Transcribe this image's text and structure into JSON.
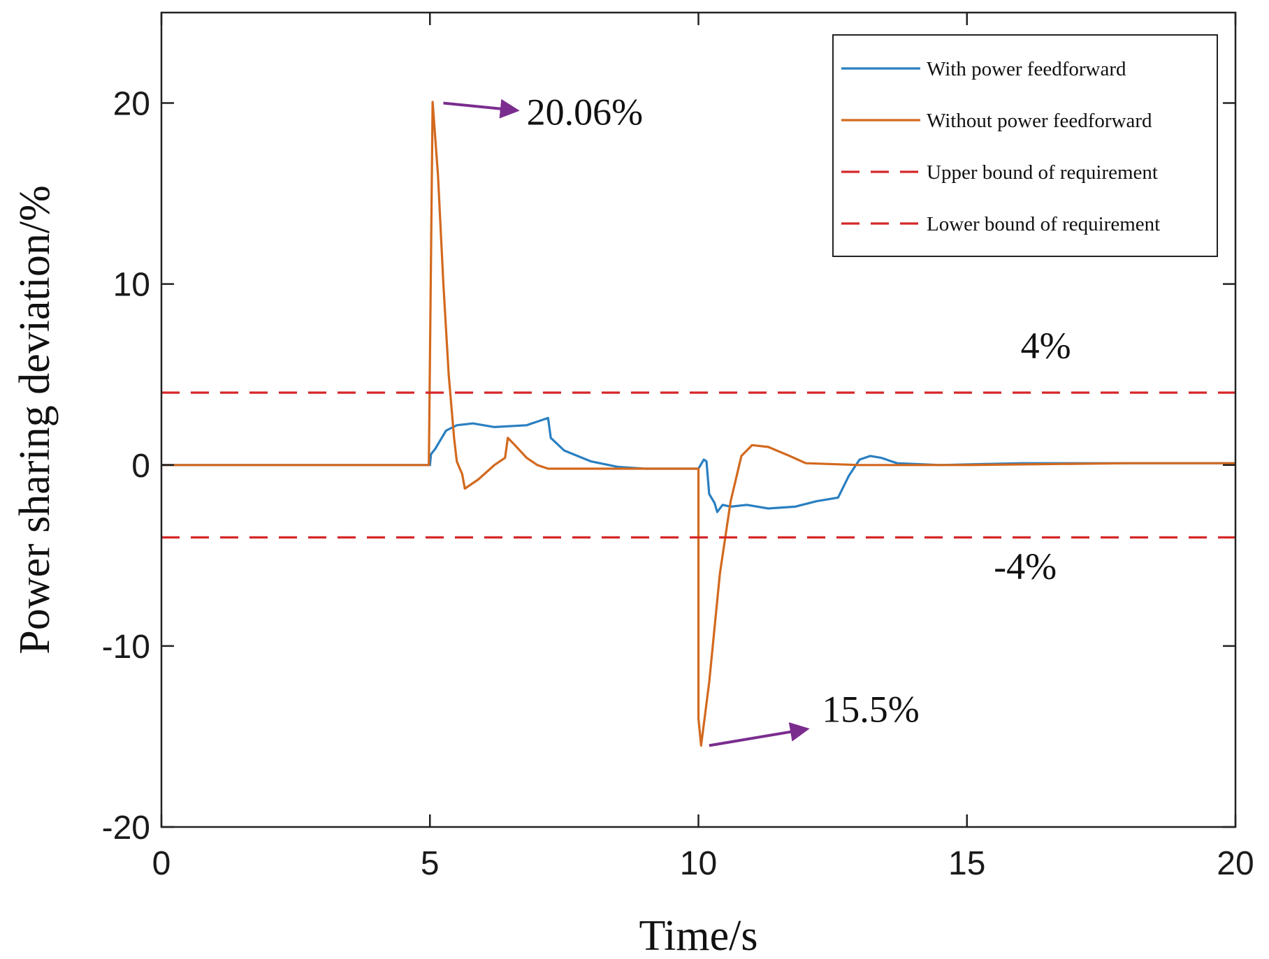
{
  "chart_data": {
    "type": "line",
    "xlabel": "Time/s",
    "ylabel": "Power sharing deviation/%",
    "xlim": [
      0,
      20
    ],
    "ylim": [
      -20,
      25
    ],
    "xticks": [
      0,
      5,
      10,
      15,
      20
    ],
    "yticks": [
      -20,
      -10,
      0,
      10,
      20
    ],
    "xtick_labels": [
      "0",
      "5",
      "10",
      "15",
      "20"
    ],
    "ytick_labels": [
      "-20",
      "-10",
      "0",
      "10",
      "20"
    ],
    "grid": false,
    "legend_position": "top-right",
    "series": [
      {
        "name": "With power feedforward",
        "color": "#2a7fc1",
        "style": "solid",
        "points": [
          [
            0,
            0
          ],
          [
            5,
            0
          ],
          [
            5.02,
            0.6
          ],
          [
            5.1,
            0.9
          ],
          [
            5.3,
            1.9
          ],
          [
            5.5,
            2.2
          ],
          [
            5.8,
            2.3
          ],
          [
            6.2,
            2.1
          ],
          [
            6.8,
            2.2
          ],
          [
            7.0,
            2.4
          ],
          [
            7.2,
            2.6
          ],
          [
            7.25,
            1.5
          ],
          [
            7.5,
            0.8
          ],
          [
            8.0,
            0.2
          ],
          [
            8.5,
            -0.1
          ],
          [
            9.0,
            -0.2
          ],
          [
            9.5,
            -0.2
          ],
          [
            10.0,
            -0.2
          ],
          [
            10.1,
            0.3
          ],
          [
            10.15,
            0.2
          ],
          [
            10.2,
            -1.6
          ],
          [
            10.3,
            -2.1
          ],
          [
            10.35,
            -2.6
          ],
          [
            10.45,
            -2.2
          ],
          [
            10.6,
            -2.3
          ],
          [
            10.9,
            -2.2
          ],
          [
            11.3,
            -2.4
          ],
          [
            11.8,
            -2.3
          ],
          [
            12.2,
            -2.0
          ],
          [
            12.6,
            -1.8
          ],
          [
            12.8,
            -0.6
          ],
          [
            13.0,
            0.3
          ],
          [
            13.2,
            0.5
          ],
          [
            13.4,
            0.4
          ],
          [
            13.7,
            0.1
          ],
          [
            14.5,
            0.0
          ],
          [
            16,
            0.1
          ],
          [
            18,
            0.1
          ],
          [
            20,
            0.1
          ]
        ]
      },
      {
        "name": "Without power feedforward",
        "color": "#d2691e",
        "style": "solid",
        "points": [
          [
            0,
            0
          ],
          [
            4.98,
            0
          ],
          [
            5.05,
            20.06
          ],
          [
            5.15,
            16
          ],
          [
            5.25,
            10
          ],
          [
            5.35,
            5
          ],
          [
            5.45,
            1.5
          ],
          [
            5.5,
            0.2
          ],
          [
            5.6,
            -0.5
          ],
          [
            5.65,
            -1.3
          ],
          [
            5.9,
            -0.8
          ],
          [
            6.2,
            0
          ],
          [
            6.4,
            0.4
          ],
          [
            6.45,
            1.5
          ],
          [
            6.55,
            1.2
          ],
          [
            6.8,
            0.4
          ],
          [
            7.0,
            0.0
          ],
          [
            7.2,
            -0.2
          ],
          [
            8,
            -0.2
          ],
          [
            9.5,
            -0.2
          ],
          [
            10.0,
            -0.2
          ],
          [
            10.0,
            -14
          ],
          [
            10.05,
            -15.5
          ],
          [
            10.2,
            -12
          ],
          [
            10.4,
            -6
          ],
          [
            10.6,
            -2
          ],
          [
            10.8,
            0.5
          ],
          [
            11.0,
            1.1
          ],
          [
            11.3,
            1.0
          ],
          [
            11.7,
            0.5
          ],
          [
            12.0,
            0.1
          ],
          [
            13,
            0.0
          ],
          [
            15,
            0.0
          ],
          [
            18,
            0.1
          ],
          [
            20,
            0.1
          ]
        ]
      },
      {
        "name": "Upper bound of requirement",
        "color": "#d62728",
        "style": "dashed",
        "points": [
          [
            0,
            4
          ],
          [
            20,
            4
          ]
        ]
      },
      {
        "name": "Lower bound of requirement",
        "color": "#d62728",
        "style": "dashed",
        "points": [
          [
            0,
            -4
          ],
          [
            20,
            -4
          ]
        ]
      }
    ],
    "annotations": [
      {
        "text": "20.06%",
        "arrow_from": [
          5.25,
          20
        ],
        "arrow_to": [
          6.6,
          19.6
        ],
        "text_at": [
          6.8,
          18.8
        ]
      },
      {
        "text": "15.5%",
        "arrow_from": [
          10.2,
          -15.5
        ],
        "arrow_to": [
          12.0,
          -14.6
        ],
        "text_at": [
          12.3,
          -14.2
        ]
      },
      {
        "text": "4%",
        "text_at": [
          16.0,
          5.9
        ]
      },
      {
        "text": "-4%",
        "text_at": [
          15.5,
          -6.3
        ]
      }
    ],
    "annotation_arrow_color": "#7b2d8e"
  }
}
